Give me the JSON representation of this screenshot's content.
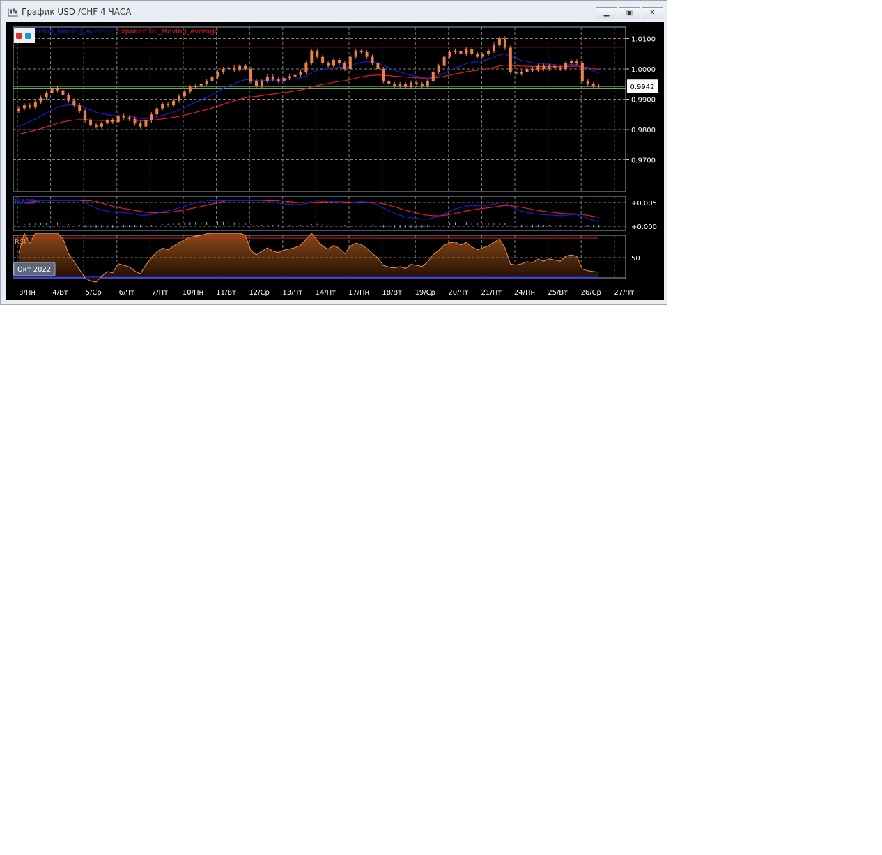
{
  "window": {
    "title": "График USD /CHF  4 ЧАСА",
    "buttons": [
      "minimize",
      "maximize",
      "close"
    ]
  },
  "legend": {
    "blue_label": "ential_Moving_Average",
    "red_label": "Exponential_Moving_Average"
  },
  "colors": {
    "background": "#000000",
    "candle": "#f0804a",
    "ema_fast": "#1a1ad0",
    "ema_slow": "#e02020",
    "grid": "#808080",
    "price_line": "#4caf50",
    "level_line": "#d02020"
  },
  "chart_data": {
    "type": "candlestick",
    "symbol": "USD /CHF",
    "timeframe": "4 ЧАСА",
    "period_label": "Окт 2022",
    "x_ticks": [
      "3/Пн",
      "4/Вт",
      "5/Ср",
      "6/Чт",
      "7/Пт",
      "10/Пн",
      "11/Вт",
      "12/Ср",
      "13/Чт",
      "14/Пт",
      "17/Пн",
      "18/Вт",
      "19/Ср",
      "20/Чт",
      "21/Пт",
      "24/Пн",
      "25/Вт",
      "26/Ср",
      "27/Чт"
    ],
    "y_ticks": [
      "1.0100",
      "1.0000",
      "0.9900",
      "0.9800",
      "0.9700"
    ],
    "ylim": [
      0.966,
      1.014
    ],
    "current_price": "0.9942",
    "horizontal_level": 1.0072,
    "closes": [
      0.987,
      0.988,
      0.9875,
      0.989,
      0.9905,
      0.992,
      0.9935,
      0.993,
      0.9915,
      0.9895,
      0.988,
      0.986,
      0.983,
      0.9815,
      0.981,
      0.982,
      0.983,
      0.9825,
      0.9845,
      0.984,
      0.9835,
      0.982,
      0.981,
      0.983,
      0.985,
      0.987,
      0.9885,
      0.988,
      0.9895,
      0.991,
      0.9925,
      0.994,
      0.9945,
      0.995,
      0.996,
      0.9975,
      0.999,
      1.0,
      1.0005,
      0.9995,
      1.001,
      1.0,
      0.996,
      0.9945,
      0.996,
      0.9975,
      0.9965,
      0.996,
      0.997,
      0.9975,
      0.998,
      0.999,
      1.002,
      1.006,
      1.004,
      1.002,
      1.001,
      1.003,
      1.002,
      1.0,
      1.004,
      1.006,
      1.0055,
      1.004,
      1.002,
      1.0,
      0.996,
      0.995,
      0.9945,
      0.995,
      0.994,
      0.9955,
      0.995,
      0.9945,
      0.996,
      0.999,
      1.001,
      1.004,
      1.0055,
      1.006,
      1.005,
      1.0065,
      1.005,
      1.004,
      1.005,
      1.006,
      1.008,
      1.01,
      1.007,
      0.999,
      0.9985,
      0.999,
      1.0,
      0.9995,
      1.001,
      1.0,
      1.001,
      1.0005,
      1.0,
      1.002,
      1.0025,
      1.002,
      0.996,
      0.995,
      0.9945,
      0.9942
    ],
    "macd": {
      "label": "MACD",
      "y_ticks": [
        "+0.005",
        "+0.000"
      ]
    },
    "rsi": {
      "label": "RSI",
      "y_ticks": [
        "50"
      ],
      "levels": [
        70,
        50,
        30
      ]
    }
  }
}
